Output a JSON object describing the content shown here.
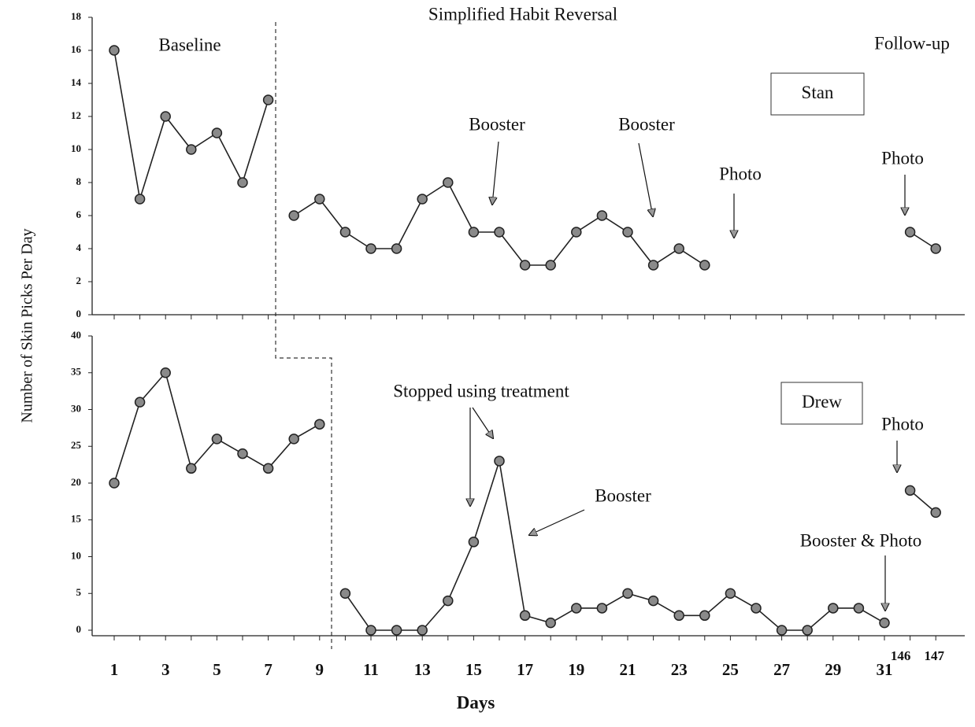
{
  "ylabel": "Number of Skin Picks Per Day",
  "phase_labels": [
    "Baseline",
    "Simplified Habit Reversal",
    "Follow-up"
  ],
  "chart_data": [
    {
      "type": "line",
      "label": "Stan",
      "ylim": [
        0,
        18
      ],
      "yticks": [
        0,
        2,
        4,
        6,
        8,
        10,
        12,
        14,
        16,
        18
      ],
      "color": "#222222",
      "series": [
        {
          "values": [
            16,
            7,
            12,
            10,
            11,
            8,
            13,
            null,
            null,
            null,
            null,
            null,
            null,
            null,
            null,
            null,
            null,
            null,
            null,
            null,
            null,
            null,
            null,
            null,
            null,
            null,
            null,
            null,
            null,
            null,
            null,
            null,
            null
          ]
        },
        {
          "values": [
            null,
            null,
            null,
            null,
            null,
            null,
            null,
            6,
            7,
            5,
            4,
            4,
            7,
            8,
            5,
            5,
            3,
            3,
            5,
            6,
            5,
            3,
            4,
            3,
            null,
            null,
            null,
            null,
            null,
            null,
            null,
            null,
            null
          ]
        },
        {
          "values": [
            null,
            null,
            null,
            null,
            null,
            null,
            null,
            null,
            null,
            null,
            null,
            null,
            null,
            null,
            null,
            null,
            null,
            null,
            null,
            null,
            null,
            null,
            null,
            null,
            null,
            null,
            null,
            null,
            null,
            null,
            null,
            5,
            4
          ]
        }
      ],
      "annotations": [
        {
          "text": "Booster"
        },
        {
          "text": "Booster"
        },
        {
          "text": "Photo"
        },
        {
          "text": "Photo"
        }
      ]
    },
    {
      "type": "line",
      "label": "Drew",
      "xlabel": "Days",
      "ylim": [
        0,
        40
      ],
      "yticks": [
        0,
        5,
        10,
        15,
        20,
        25,
        30,
        35,
        40
      ],
      "color": "#222222",
      "categories": [
        1,
        null,
        3,
        null,
        5,
        null,
        7,
        null,
        9,
        null,
        11,
        null,
        13,
        null,
        15,
        null,
        17,
        null,
        19,
        null,
        21,
        null,
        23,
        null,
        25,
        null,
        27,
        null,
        29,
        null,
        31,
        146,
        147
      ],
      "series": [
        {
          "values": [
            20,
            31,
            35,
            22,
            26,
            24,
            22,
            26,
            28,
            null,
            null,
            null,
            null,
            null,
            null,
            null,
            null,
            null,
            null,
            null,
            null,
            null,
            null,
            null,
            null,
            null,
            null,
            null,
            null,
            null,
            null,
            null,
            null
          ]
        },
        {
          "values": [
            null,
            null,
            null,
            null,
            null,
            null,
            null,
            null,
            null,
            5,
            0,
            0,
            0,
            4,
            12,
            23,
            2,
            1,
            3,
            3,
            5,
            4,
            2,
            2,
            5,
            3,
            0,
            0,
            3,
            3,
            1,
            null,
            null
          ]
        },
        {
          "values": [
            null,
            null,
            null,
            null,
            null,
            null,
            null,
            null,
            null,
            null,
            null,
            null,
            null,
            null,
            null,
            null,
            null,
            null,
            null,
            null,
            null,
            null,
            null,
            null,
            null,
            null,
            null,
            null,
            null,
            null,
            null,
            19,
            16
          ]
        }
      ],
      "annotations": [
        {
          "text": "Stopped using treatment"
        },
        {
          "text": "Booster"
        },
        {
          "text": "Booster & Photo"
        },
        {
          "text": "Photo"
        }
      ]
    }
  ]
}
